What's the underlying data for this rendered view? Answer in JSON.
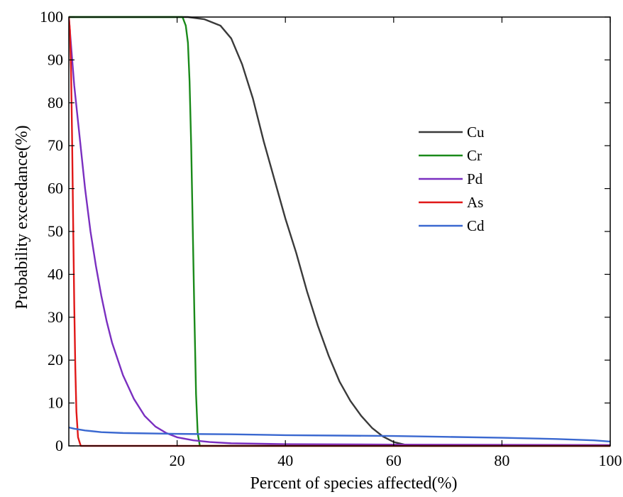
{
  "chart_data": {
    "type": "line",
    "title": "",
    "xlabel": "Percent of species affected(%)",
    "ylabel": "Probability exceedance(%)",
    "xlim": [
      0,
      100
    ],
    "ylim": [
      0,
      100
    ],
    "x_ticks": [
      20,
      40,
      60,
      80,
      100
    ],
    "y_ticks": [
      0,
      10,
      20,
      30,
      40,
      50,
      60,
      70,
      80,
      90,
      100
    ],
    "grid": false,
    "legend_position": "right",
    "series": [
      {
        "name": "Cu",
        "color": "#3a3a3a",
        "points": [
          [
            0,
            100
          ],
          [
            22,
            100
          ],
          [
            25,
            99.5
          ],
          [
            28,
            98
          ],
          [
            30,
            95
          ],
          [
            32,
            89
          ],
          [
            34,
            81
          ],
          [
            36,
            71
          ],
          [
            38,
            62
          ],
          [
            40,
            53
          ],
          [
            42,
            45
          ],
          [
            44,
            36
          ],
          [
            46,
            28
          ],
          [
            48,
            21
          ],
          [
            50,
            15
          ],
          [
            52,
            10.5
          ],
          [
            54,
            7
          ],
          [
            56,
            4.2
          ],
          [
            58,
            2.2
          ],
          [
            60,
            0.9
          ],
          [
            62,
            0.3
          ],
          [
            65,
            0
          ],
          [
            100,
            0
          ]
        ]
      },
      {
        "name": "Cr",
        "color": "#1a8a1a",
        "points": [
          [
            0,
            100
          ],
          [
            21,
            100
          ],
          [
            21.6,
            98
          ],
          [
            22,
            94
          ],
          [
            22.3,
            85
          ],
          [
            22.6,
            70
          ],
          [
            22.9,
            50
          ],
          [
            23.2,
            30
          ],
          [
            23.5,
            12
          ],
          [
            23.8,
            3
          ],
          [
            24.2,
            0
          ],
          [
            100,
            0
          ]
        ]
      },
      {
        "name": "Pd",
        "color": "#7a2fc0",
        "points": [
          [
            0,
            100
          ],
          [
            0.5,
            92
          ],
          [
            1,
            84
          ],
          [
            2,
            72
          ],
          [
            3,
            60
          ],
          [
            4,
            50
          ],
          [
            5,
            42
          ],
          [
            6,
            35
          ],
          [
            7,
            29
          ],
          [
            8,
            24
          ],
          [
            10,
            16.5
          ],
          [
            12,
            11
          ],
          [
            14,
            7
          ],
          [
            16,
            4.5
          ],
          [
            18,
            3
          ],
          [
            20,
            2
          ],
          [
            23,
            1.3
          ],
          [
            26,
            0.9
          ],
          [
            30,
            0.6
          ],
          [
            40,
            0.4
          ],
          [
            60,
            0.3
          ],
          [
            80,
            0.25
          ],
          [
            100,
            0.2
          ]
        ]
      },
      {
        "name": "As",
        "color": "#e01818",
        "points": [
          [
            0,
            100
          ],
          [
            0.2,
            97
          ],
          [
            0.4,
            88
          ],
          [
            0.6,
            72
          ],
          [
            0.8,
            52
          ],
          [
            1,
            33
          ],
          [
            1.2,
            18
          ],
          [
            1.4,
            8
          ],
          [
            1.7,
            2
          ],
          [
            2.2,
            0
          ],
          [
            100,
            0
          ]
        ]
      },
      {
        "name": "Cd",
        "color": "#3a68d0",
        "points": [
          [
            0,
            4.3
          ],
          [
            1,
            4
          ],
          [
            3,
            3.6
          ],
          [
            6,
            3.2
          ],
          [
            10,
            3
          ],
          [
            20,
            2.8
          ],
          [
            30,
            2.7
          ],
          [
            40,
            2.5
          ],
          [
            50,
            2.4
          ],
          [
            60,
            2.3
          ],
          [
            70,
            2.1
          ],
          [
            80,
            1.9
          ],
          [
            90,
            1.6
          ],
          [
            97,
            1.3
          ],
          [
            100,
            1
          ]
        ]
      }
    ]
  }
}
